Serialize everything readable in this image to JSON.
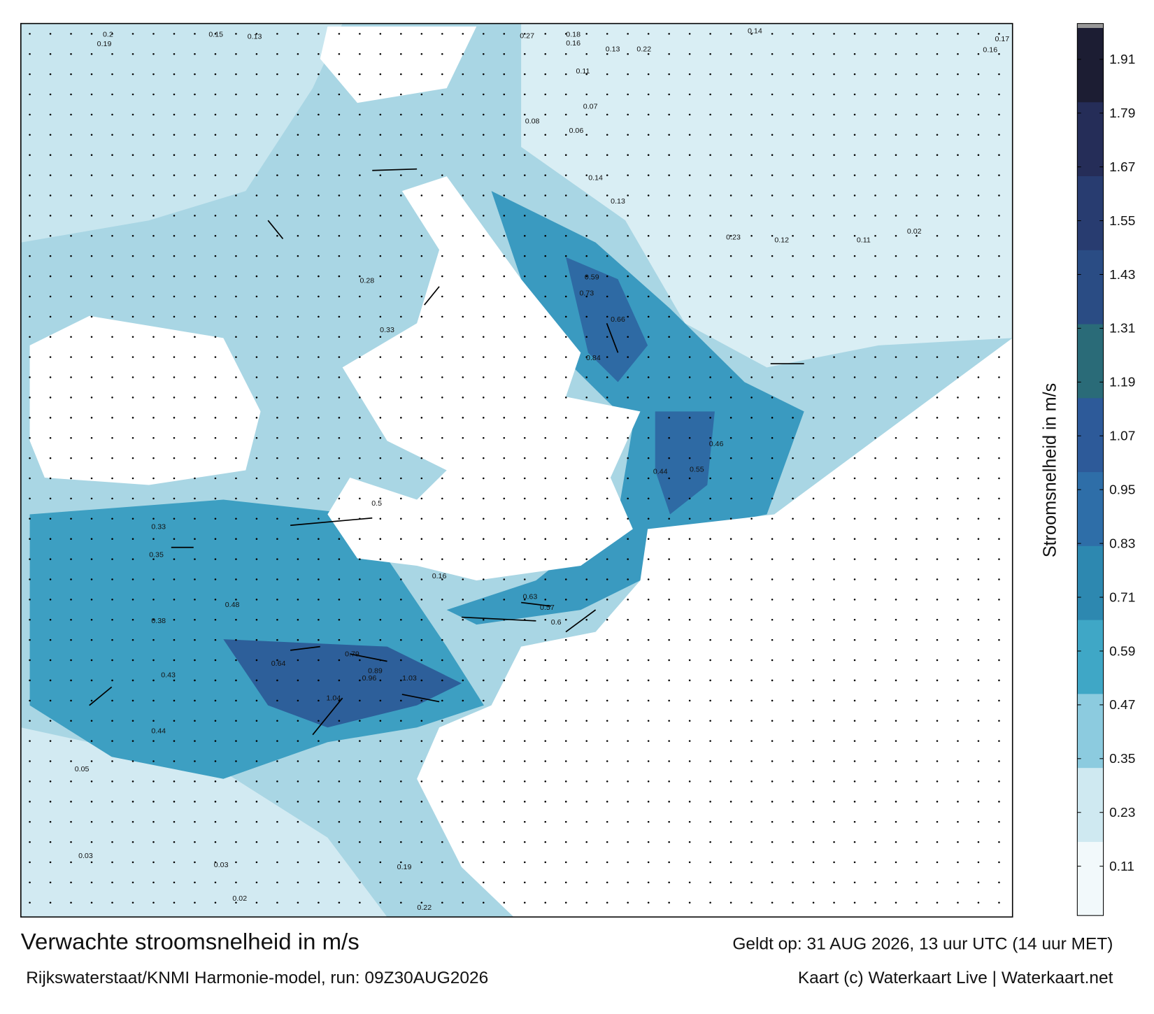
{
  "title": "Verwachte stroomsnelheid in m/s",
  "valid_time": "Geldt op: 31 AUG 2026, 13 uur UTC (14 uur MET)",
  "source": "Rijkswaterstaat/KNMI Harmonie-model, run: 09Z30AUG2026",
  "credit": "Kaart (c) Waterkaart Live | Waterkaart.net",
  "colorbar": {
    "label": "Stroomsnelheid in m/s",
    "lim": [
      0,
      1.98
    ],
    "ticks": [
      0.11,
      0.23,
      0.35,
      0.47,
      0.59,
      0.71,
      0.83,
      0.95,
      1.07,
      1.19,
      1.31,
      1.43,
      1.55,
      1.67,
      1.79,
      1.91
    ],
    "colors": [
      "#f2f9fb",
      "#cfe9f1",
      "#8ccbdf",
      "#3fa7c6",
      "#2d88b0",
      "#2e6ea8",
      "#2d5a99",
      "#2a6b78",
      "#2a4c84",
      "#283c70",
      "#252d58",
      "#1c1d33"
    ]
  },
  "labels": [
    0.2,
    0.19,
    0.15,
    0.13,
    0.27,
    0.18,
    0.16,
    0.14,
    0.17,
    0.16,
    0.13,
    0.22,
    0.11,
    0.07,
    0.08,
    0.06,
    0.14,
    0.13,
    0.12,
    0.23,
    0.11,
    0.59,
    0.73,
    0.66,
    0.84,
    0.55,
    0.46,
    0.44,
    0.33,
    0.35,
    0.38,
    0.43,
    0.44,
    0.48,
    0.64,
    0.79,
    0.89,
    1.03,
    1.04,
    0.96,
    0.63,
    0.57,
    0.6,
    0.03,
    0.03,
    0.02,
    0.22,
    0.19,
    0.05,
    0.16,
    0.28,
    0.33,
    0.5,
    0.02
  ]
}
